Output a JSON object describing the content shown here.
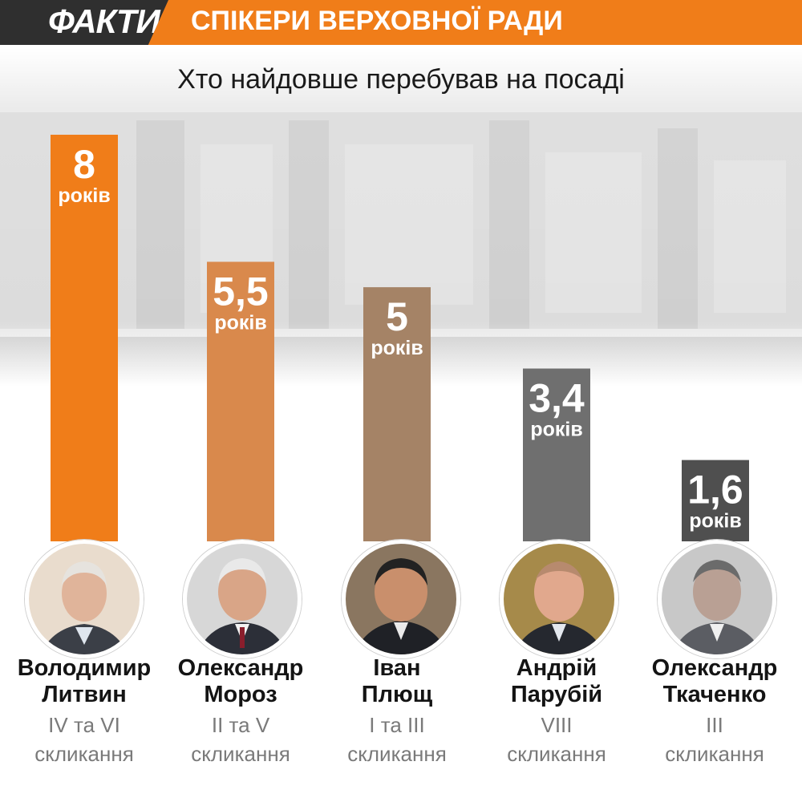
{
  "header": {
    "logo": "ФАКТИ",
    "title": "СПІКЕРИ ВЕРХОВНОЇ РАДИ"
  },
  "colors": {
    "header_bg": "#f07d19",
    "logo_bg": "#2f2f2f",
    "bar_colors": [
      "#f07d19",
      "#d9894c",
      "#a58366",
      "#6f6f6f",
      "#4f4f4f"
    ]
  },
  "chart_data": {
    "type": "bar",
    "title": "Хто найдовше перебував на посаді",
    "unit": "років",
    "categories": [
      "Володимир Литвин",
      "Олександр Мороз",
      "Іван Плющ",
      "Андрій Парубій",
      "Олександр Ткаченко"
    ],
    "values": [
      8,
      5.5,
      5,
      3.4,
      1.6
    ],
    "value_labels": [
      "8",
      "5,5",
      "5",
      "3,4",
      "1,6"
    ]
  },
  "speakers": [
    {
      "first": "Володимир",
      "last": "Литвин",
      "convocations": "IV та VI",
      "suffix": "скликання"
    },
    {
      "first": "Олександр",
      "last": "Мороз",
      "convocations": "II та V",
      "suffix": "скликання"
    },
    {
      "first": "Іван",
      "last": "Плющ",
      "convocations": "I та III",
      "suffix": "скликання"
    },
    {
      "first": "Андрій",
      "last": "Парубій",
      "convocations": "VIII",
      "suffix": "скликання"
    },
    {
      "first": "Олександр",
      "last": "Ткаченко",
      "convocations": "III",
      "suffix": "скликання"
    }
  ]
}
